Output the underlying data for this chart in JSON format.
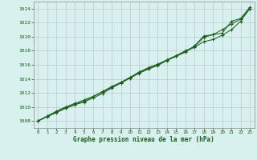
{
  "title": "Graphe pression niveau de la mer (hPa)",
  "background_color": "#d8f0ee",
  "plot_bg_color": "#d8f0f0",
  "grid_color": "#c0c8c8",
  "line_color": "#1a5c1a",
  "border_color": "#888888",
  "xlim": [
    -0.5,
    23.5
  ],
  "ylim": [
    1007.0,
    1025.0
  ],
  "yticks": [
    1008,
    1010,
    1012,
    1014,
    1016,
    1018,
    1020,
    1022,
    1024
  ],
  "xticks": [
    0,
    1,
    2,
    3,
    4,
    5,
    6,
    7,
    8,
    9,
    10,
    11,
    12,
    13,
    14,
    15,
    16,
    17,
    18,
    19,
    20,
    21,
    22,
    23
  ],
  "line1_x": [
    0,
    1,
    2,
    3,
    4,
    5,
    6,
    7,
    8,
    9,
    10,
    11,
    12,
    13,
    14,
    15,
    16,
    17,
    18,
    19,
    20,
    21,
    22,
    23
  ],
  "line1_y": [
    1008.0,
    1008.7,
    1009.4,
    1010.0,
    1010.5,
    1011.0,
    1011.5,
    1012.2,
    1012.9,
    1013.5,
    1014.2,
    1015.0,
    1015.6,
    1016.1,
    1016.7,
    1017.3,
    1018.0,
    1018.6,
    1019.9,
    1020.3,
    1020.5,
    1022.2,
    1022.6,
    1024.2
  ],
  "line2_x": [
    0,
    1,
    2,
    3,
    4,
    5,
    6,
    7,
    8,
    9,
    10,
    11,
    12,
    13,
    14,
    15,
    16,
    17,
    18,
    19,
    20,
    21,
    22,
    23
  ],
  "line2_y": [
    1008.0,
    1008.7,
    1009.3,
    1009.9,
    1010.4,
    1010.8,
    1011.5,
    1012.1,
    1012.8,
    1013.5,
    1014.2,
    1014.9,
    1015.5,
    1016.0,
    1016.7,
    1017.3,
    1017.9,
    1018.5,
    1019.3,
    1019.6,
    1020.2,
    1021.0,
    1022.2,
    1024.0
  ],
  "line3_x": [
    0,
    1,
    2,
    3,
    4,
    5,
    6,
    7,
    8,
    9,
    10,
    11,
    12,
    13,
    14,
    15,
    16,
    17,
    18,
    19,
    20,
    21,
    22,
    23
  ],
  "line3_y": [
    1008.0,
    1008.6,
    1009.2,
    1009.8,
    1010.3,
    1010.7,
    1011.3,
    1011.9,
    1012.7,
    1013.4,
    1014.1,
    1014.8,
    1015.4,
    1015.9,
    1016.6,
    1017.2,
    1017.8,
    1018.7,
    1020.1,
    1020.3,
    1021.0,
    1021.8,
    1022.5,
    1024.0
  ]
}
